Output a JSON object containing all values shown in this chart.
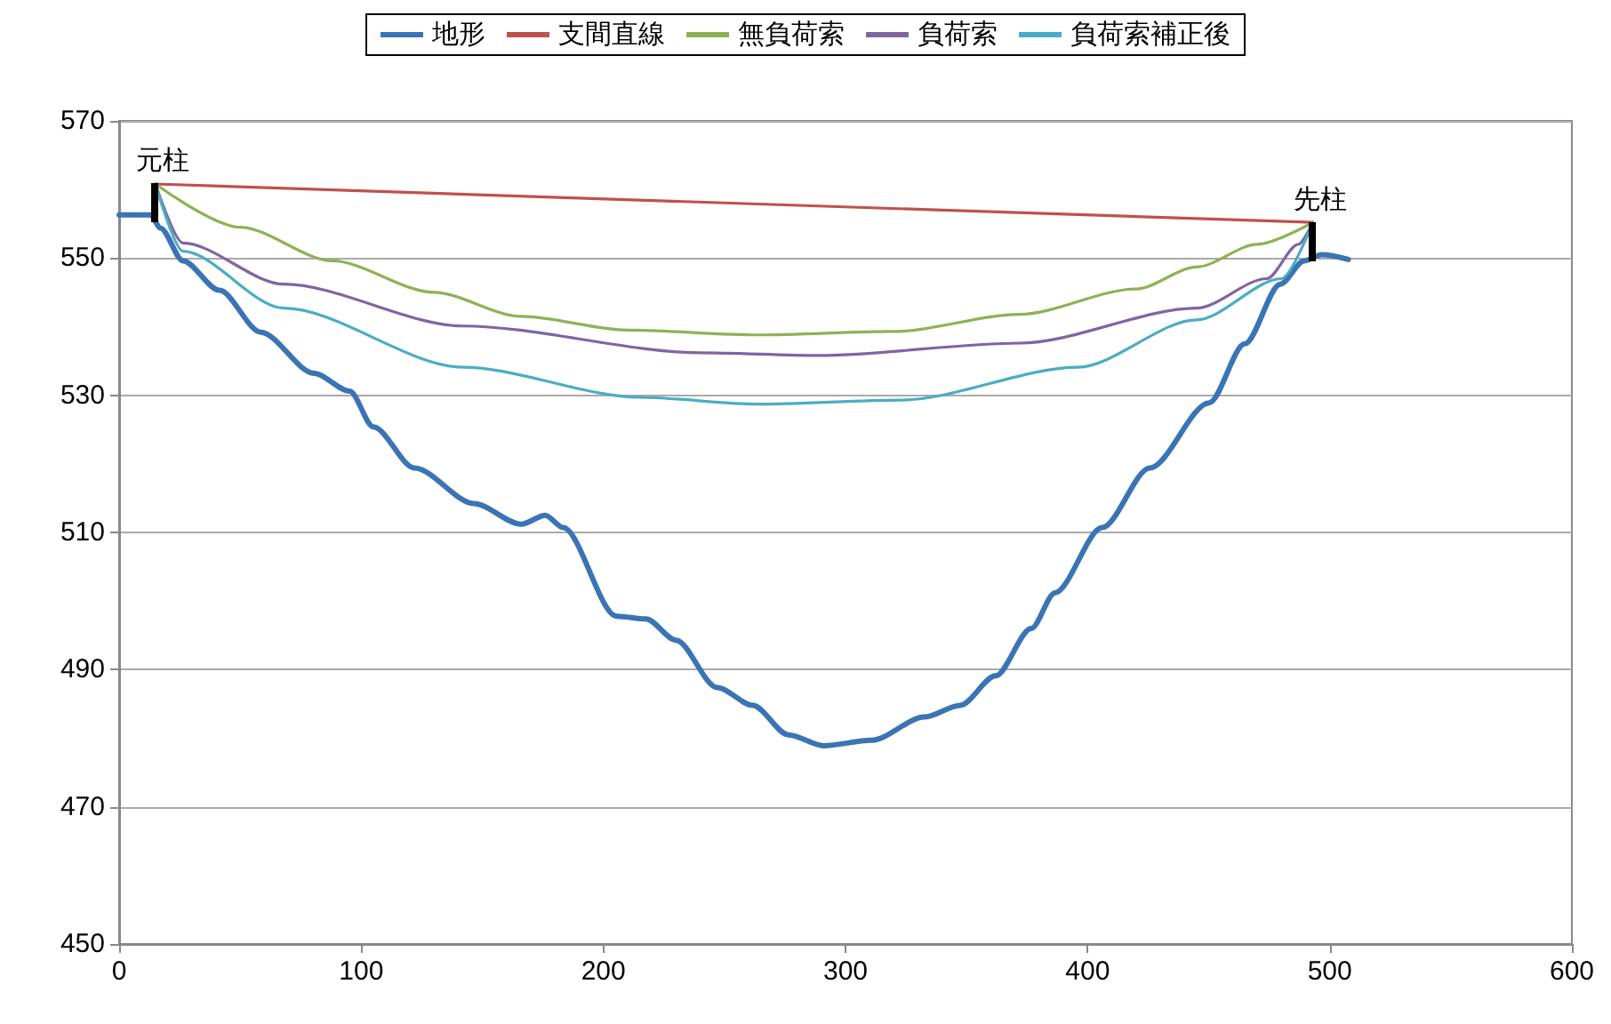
{
  "chart_data": {
    "type": "line",
    "xlim": [
      0,
      600
    ],
    "xticks": [
      0,
      100,
      200,
      300,
      400,
      500,
      600
    ],
    "ylim": [
      450,
      570
    ],
    "yticks": [
      450,
      470,
      490,
      510,
      530,
      550,
      570
    ],
    "grid": "y",
    "legend": "top",
    "marker": "none",
    "line_style": "solid",
    "series": [
      {
        "name": "地形",
        "color": "#3a74b4",
        "x": [
          0,
          13,
          17,
          26.4,
          41.4,
          58.5,
          80.5,
          95.2,
          105,
          122,
          146.6,
          166,
          176,
          183.4,
          205.4,
          217.6,
          229.9,
          247,
          261.7,
          276.4,
          291,
          310.7,
          332.7,
          347.4,
          362,
          376.7,
          386.5,
          406,
          425.7,
          450.2,
          464.9,
          479.6,
          489.4,
          496.7,
          507.7
        ],
        "values": [
          556.3,
          556.3,
          554.4,
          549.6,
          545.3,
          539.2,
          533.2,
          530.6,
          525.4,
          519.4,
          514.2,
          511.2,
          512.5,
          510.7,
          497.8,
          497.4,
          494.3,
          487.4,
          484.8,
          480.5,
          478.9,
          479.7,
          483.1,
          484.8,
          489.1,
          496,
          501.2,
          510.7,
          519.4,
          528.9,
          537.5,
          546.2,
          549.6,
          550.5,
          549.8
        ]
      },
      {
        "name": "支間直線",
        "color": "#c0504d",
        "x": [
          15,
          493
        ],
        "values": [
          560.8,
          555.2
        ]
      },
      {
        "name": "無負荷索",
        "color": "#8db255",
        "x": [
          15,
          50,
          88,
          130,
          166,
          210,
          264,
          320,
          372,
          420,
          445,
          470,
          493
        ],
        "values": [
          560.8,
          554.5,
          549.6,
          545,
          541.5,
          539.5,
          538.8,
          539.3,
          541.8,
          545.5,
          548.7,
          552,
          555.2
        ]
      },
      {
        "name": "負荷索",
        "color": "#8064a2",
        "x": [
          15,
          26.4,
          68,
          142,
          240,
          289,
          372,
          445,
          474,
          487,
          493
        ],
        "values": [
          560.8,
          552.2,
          546.2,
          540.1,
          536.2,
          535.8,
          537.6,
          542.7,
          547,
          552,
          555.2
        ]
      },
      {
        "name": "負荷索補正後",
        "color": "#4bacc6",
        "x": [
          15,
          26.4,
          68,
          142,
          215,
          264,
          323,
          396,
          445,
          480,
          493
        ],
        "values": [
          560.8,
          551,
          542.7,
          534.1,
          529.7,
          528.7,
          529.3,
          534.1,
          541,
          547,
          555.2
        ]
      }
    ],
    "annotations": [
      {
        "text": "元柱",
        "x": 15,
        "y": 560.8
      },
      {
        "text": "先柱",
        "x": 493,
        "y": 555.2
      }
    ]
  }
}
